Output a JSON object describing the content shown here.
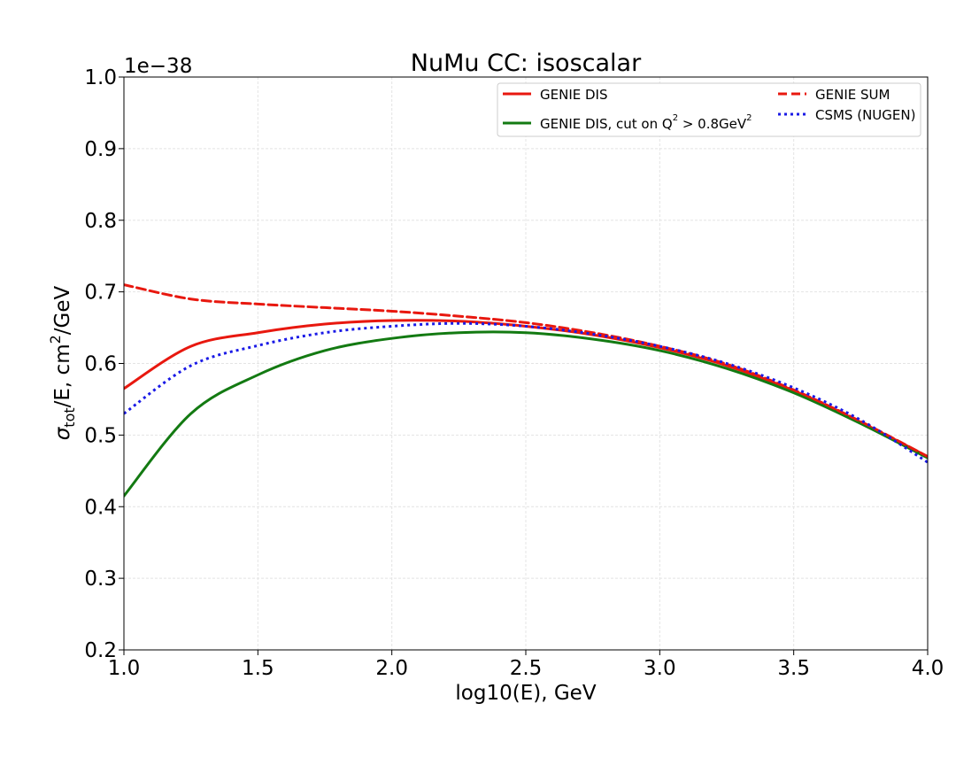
{
  "chart_data": {
    "type": "line",
    "title": "NuMu CC: isoscalar",
    "xlabel_main": "log10(E), GeV",
    "ylabel": {
      "sigma": "σ",
      "sub": "tot",
      "mid": "/E, cm",
      "sup": "2",
      "end": "/GeV"
    },
    "offset_text": "1e−38",
    "xlim": [
      1.0,
      4.0
    ],
    "ylim": [
      0.2,
      1.0
    ],
    "grid": true,
    "legend_position": "top-right",
    "x_ticks": [
      1.0,
      1.5,
      2.0,
      2.5,
      3.0,
      3.5,
      4.0
    ],
    "x_tick_labels": [
      "1.0",
      "1.5",
      "2.0",
      "2.5",
      "3.0",
      "3.5",
      "4.0"
    ],
    "y_ticks": [
      0.2,
      0.3,
      0.4,
      0.5,
      0.6,
      0.7,
      0.8,
      0.9,
      1.0
    ],
    "y_tick_labels": [
      "0.2",
      "0.3",
      "0.4",
      "0.5",
      "0.6",
      "0.7",
      "0.8",
      "0.9",
      "1.0"
    ],
    "x": [
      1.0,
      1.25,
      1.5,
      1.75,
      2.0,
      2.25,
      2.5,
      2.75,
      3.0,
      3.25,
      3.5,
      3.75,
      4.0
    ],
    "series": [
      {
        "name": "GENIE DIS",
        "color": "#e8180f",
        "style": "solid",
        "values": [
          0.565,
          0.624,
          0.643,
          0.655,
          0.66,
          0.659,
          0.652,
          0.64,
          0.622,
          0.597,
          0.562,
          0.518,
          0.47
        ]
      },
      {
        "name_parts": {
          "pre": "GENIE DIS, cut on Q",
          "sup1": "2",
          "mid": " > 0.8GeV",
          "sup2": "2"
        },
        "color": "#137a12",
        "style": "solid",
        "values": [
          0.415,
          0.53,
          0.584,
          0.618,
          0.635,
          0.643,
          0.643,
          0.634,
          0.618,
          0.593,
          0.559,
          0.516,
          0.468
        ]
      },
      {
        "name": "GENIE SUM",
        "color": "#e8180f",
        "style": "dashed",
        "values": [
          0.71,
          0.69,
          0.683,
          0.678,
          0.673,
          0.666,
          0.657,
          0.643,
          0.624,
          0.599,
          0.563,
          0.519,
          0.47
        ]
      },
      {
        "name": "CSMS (NUGEN)",
        "color": "#1a1ae6",
        "style": "dotted",
        "values": [
          0.53,
          0.597,
          0.625,
          0.643,
          0.652,
          0.656,
          0.652,
          0.641,
          0.624,
          0.6,
          0.566,
          0.521,
          0.462
        ]
      }
    ]
  }
}
